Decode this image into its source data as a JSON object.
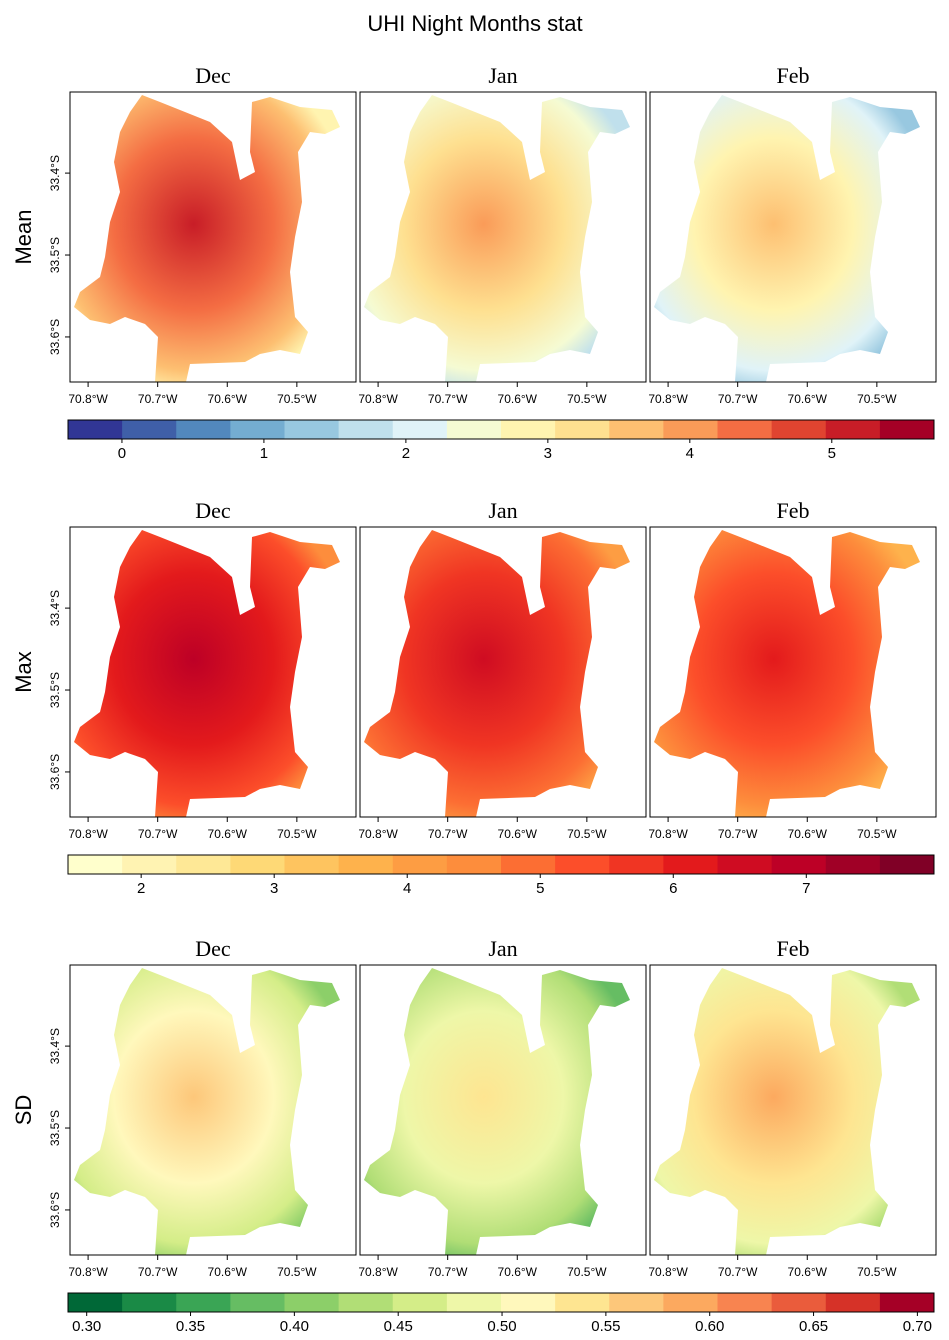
{
  "title": "UHI Night Months stat",
  "maps": {
    "xlim": [
      -70.826,
      -70.415
    ],
    "ylim": [
      -33.655,
      -33.301
    ],
    "xticks": [
      {
        "value": -70.8,
        "label": "70.8°W"
      },
      {
        "value": -70.7,
        "label": "70.7°W"
      },
      {
        "value": -70.6,
        "label": "70.6°W"
      },
      {
        "value": -70.5,
        "label": "70.5°W"
      }
    ],
    "yticks": [
      {
        "value": -33.4,
        "label": "33.4°S"
      },
      {
        "value": -33.5,
        "label": "33.5°S"
      },
      {
        "value": -33.6,
        "label": "33.6°S"
      }
    ]
  },
  "rows": [
    {
      "label": "Mean",
      "panels": [
        "Dec",
        "Jan",
        "Feb"
      ],
      "colorbar": {
        "lim": [
          -0.38,
          5.72
        ],
        "ticks": [
          0,
          1,
          2,
          3,
          4,
          5
        ],
        "colors": [
          "#313695",
          "#3f5fa8",
          "#5288bd",
          "#74add1",
          "#98c8e0",
          "#c0e0ec",
          "#e0f3f8",
          "#f5fbd3",
          "#fff4b0",
          "#fee090",
          "#fdbf71",
          "#fa9b58",
          "#f46d43",
          "#e04430",
          "#c81d27",
          "#a50026"
        ]
      }
    },
    {
      "label": "Max",
      "panels": [
        "Dec",
        "Jan",
        "Feb"
      ],
      "colorbar": {
        "lim": [
          1.45,
          7.96
        ],
        "ticks": [
          2,
          3,
          4,
          5,
          6,
          7
        ],
        "colors": [
          "#ffffcc",
          "#fff3b2",
          "#fee896",
          "#fed976",
          "#fec45f",
          "#feb24c",
          "#fd9d43",
          "#fd8d3c",
          "#fc6e33",
          "#fc4e2a",
          "#f03523",
          "#e31a1c",
          "#cf0c22",
          "#bd0026",
          "#a00026",
          "#800026"
        ]
      }
    },
    {
      "label": "SD",
      "panels": [
        "Dec",
        "Jan",
        "Feb"
      ],
      "colorbar": {
        "lim": [
          0.291,
          0.708
        ],
        "ticks": [
          {
            "value": 0.3,
            "label": "0.30"
          },
          0.35,
          {
            "value": 0.4,
            "label": "0.40"
          },
          0.45,
          {
            "value": 0.5,
            "label": "0.50"
          },
          0.55,
          {
            "value": 0.6,
            "label": "0.60"
          },
          0.65,
          {
            "value": 0.7,
            "label": "0.70"
          }
        ],
        "colors": [
          "#006837",
          "#1a8a46",
          "#3aa555",
          "#66bd63",
          "#8ccf69",
          "#b1de76",
          "#d4ed88",
          "#eef7a8",
          "#fff8bc",
          "#fee591",
          "#fdc77a",
          "#fca95f",
          "#f88450",
          "#ea5c3c",
          "#d63228",
          "#a50026"
        ]
      }
    }
  ]
}
